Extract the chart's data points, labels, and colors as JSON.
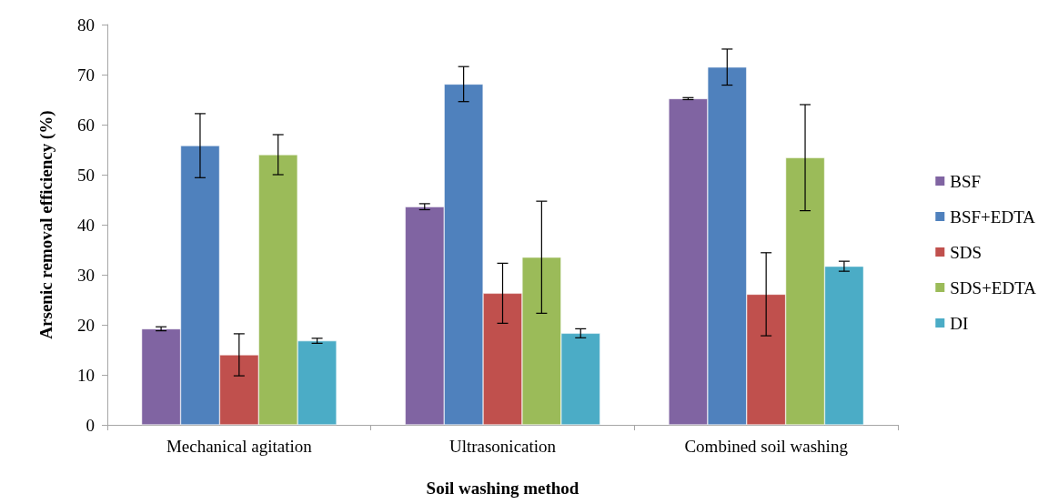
{
  "chart_data": {
    "type": "bar",
    "xlabel": "Soil washing method",
    "ylabel": "Arsenic removal efficiency (%)",
    "categories": [
      "Mechanical agitation",
      "Ultrasonication",
      "Combined soil washing"
    ],
    "series": [
      {
        "name": "BSF",
        "color": "#8064a2",
        "values": [
          19.2,
          43.6,
          65.2
        ],
        "errors": [
          0.4,
          0.6,
          0.2
        ]
      },
      {
        "name": "BSF+EDTA",
        "color": "#4f81bd",
        "values": [
          55.8,
          68.1,
          71.5
        ],
        "errors": [
          6.4,
          3.5,
          3.6
        ]
      },
      {
        "name": "SDS",
        "color": "#c0504d",
        "values": [
          14.0,
          26.3,
          26.1
        ],
        "errors": [
          4.2,
          6.0,
          8.3
        ]
      },
      {
        "name": "SDS+EDTA",
        "color": "#9bbb59",
        "values": [
          54.0,
          33.5,
          53.4
        ],
        "errors": [
          4.0,
          11.2,
          10.6
        ]
      },
      {
        "name": "DI",
        "color": "#4bacc6",
        "values": [
          16.8,
          18.3,
          31.7
        ],
        "errors": [
          0.5,
          0.9,
          1.0
        ]
      }
    ],
    "ylim": [
      0,
      80
    ],
    "yticks": [
      0,
      10,
      20,
      30,
      40,
      50,
      60,
      70,
      80
    ],
    "grid": false,
    "legend": "right"
  }
}
